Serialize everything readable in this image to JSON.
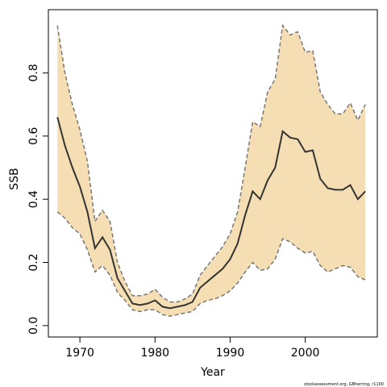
{
  "chart_data": {
    "type": "line",
    "ylabel": "SSB",
    "xlabel": "Year",
    "footnote": "stockassessment.org, GBherring, r1100",
    "x": [
      1967,
      1968,
      1969,
      1970,
      1971,
      1972,
      1973,
      1974,
      1975,
      1976,
      1977,
      1978,
      1979,
      1980,
      1981,
      1982,
      1983,
      1984,
      1985,
      1986,
      1987,
      1988,
      1989,
      1990,
      1991,
      1992,
      1993,
      1994,
      1995,
      1996,
      1997,
      1998,
      1999,
      2000,
      2001,
      2002,
      2003,
      2004,
      2005,
      2006,
      2007,
      2008
    ],
    "series": [
      {
        "color": "#333333",
        "values": [
          0.66,
          0.57,
          0.5,
          0.44,
          0.36,
          0.245,
          0.28,
          0.24,
          0.15,
          0.11,
          0.07,
          0.065,
          0.07,
          0.08,
          0.06,
          0.055,
          0.06,
          0.065,
          0.075,
          0.12,
          0.14,
          0.16,
          0.18,
          0.21,
          0.26,
          0.35,
          0.425,
          0.4,
          0.46,
          0.5,
          0.615,
          0.595,
          0.59,
          0.55,
          0.555,
          0.465,
          0.435,
          0.43,
          0.43,
          0.445,
          0.4,
          0.425
        ]
      }
    ],
    "band": {
      "fill": "#f5deb3",
      "edge_color": "#777777",
      "upper": [
        0.95,
        0.8,
        0.7,
        0.62,
        0.52,
        0.33,
        0.365,
        0.33,
        0.2,
        0.14,
        0.095,
        0.095,
        0.1,
        0.115,
        0.09,
        0.075,
        0.075,
        0.085,
        0.1,
        0.16,
        0.19,
        0.22,
        0.25,
        0.29,
        0.36,
        0.5,
        0.645,
        0.63,
        0.74,
        0.78,
        0.95,
        0.92,
        0.93,
        0.865,
        0.87,
        0.74,
        0.7,
        0.67,
        0.67,
        0.705,
        0.65,
        0.7
      ],
      "lower": [
        0.36,
        0.34,
        0.31,
        0.29,
        0.24,
        0.17,
        0.19,
        0.16,
        0.105,
        0.08,
        0.05,
        0.045,
        0.05,
        0.05,
        0.035,
        0.03,
        0.035,
        0.04,
        0.045,
        0.07,
        0.08,
        0.085,
        0.095,
        0.11,
        0.135,
        0.17,
        0.2,
        0.175,
        0.18,
        0.21,
        0.275,
        0.265,
        0.245,
        0.23,
        0.235,
        0.19,
        0.17,
        0.18,
        0.19,
        0.185,
        0.155,
        0.145
      ]
    },
    "xlim": [
      1965.8,
      2009.6
    ],
    "xticks": [
      1970,
      1980,
      1990,
      2000
    ],
    "ylim": [
      -0.036,
      1.0
    ],
    "yticks": [
      {
        "value": 0,
        "label": "0.0"
      },
      0.2,
      0.4,
      0.6,
      0.8
    ]
  }
}
